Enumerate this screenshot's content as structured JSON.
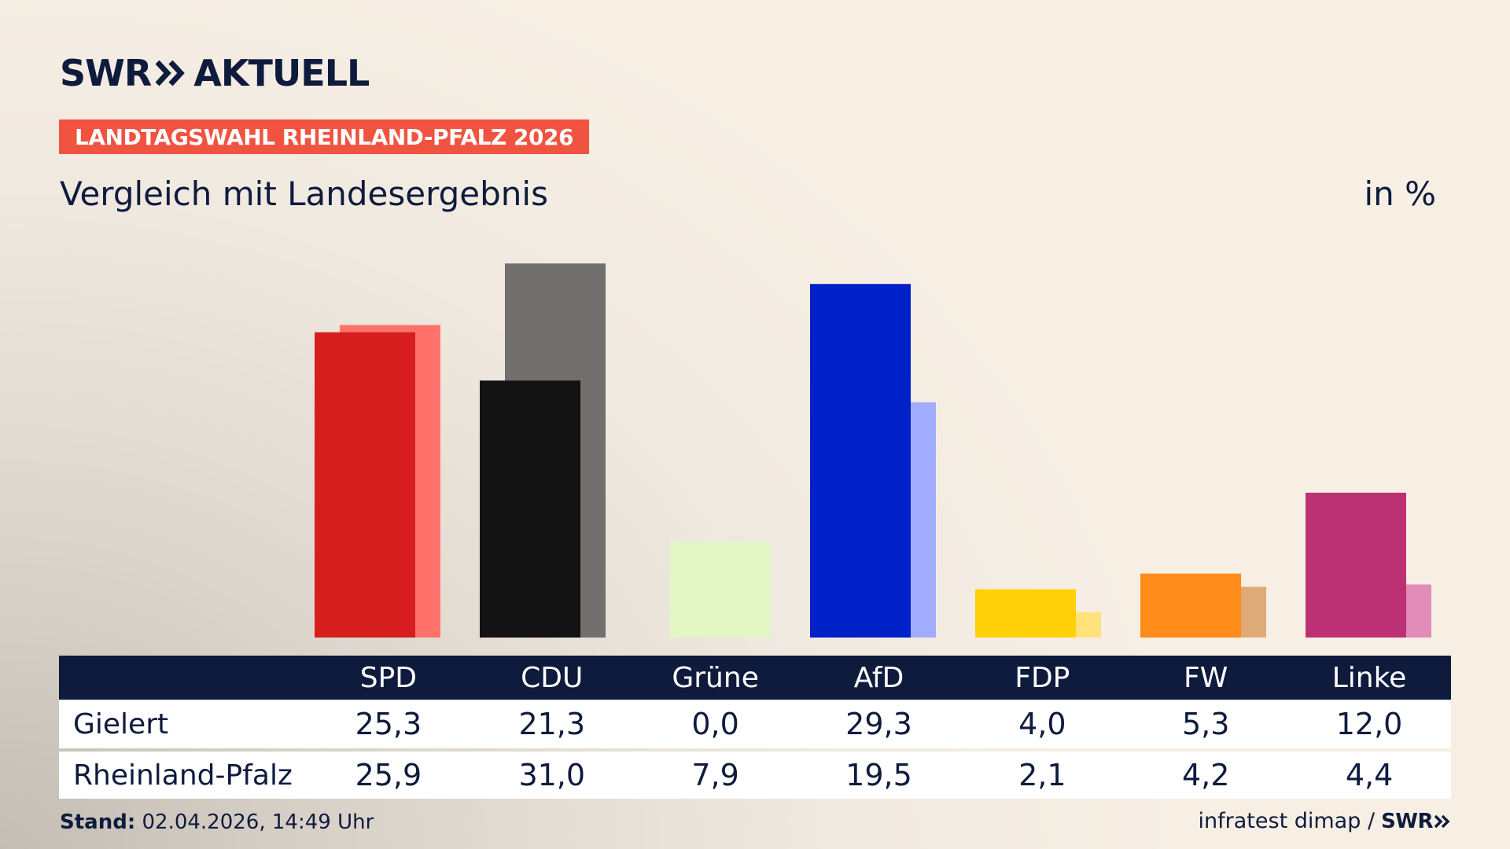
{
  "header": {
    "logo_left": "SWR",
    "logo_right": "AKTUELL",
    "badge": "LANDTAGSWAHL RHEINLAND-PFALZ 2026",
    "subtitle": "Vergleich mit Landesergebnis",
    "unit": "in %"
  },
  "colors": {
    "primary": [
      "#d71e1f",
      "#131313",
      "#d4f5ab",
      "#0021c7",
      "#ffd10a",
      "#ff8c1a",
      "#bc3173"
    ],
    "secondary": [
      "#ff726b",
      "#71706e",
      "#e2f7c4",
      "#a1acff",
      "#ffe27a",
      "#deaa78",
      "#e28cba"
    ]
  },
  "chart_data": {
    "type": "bar",
    "title": "Vergleich mit Landesergebnis",
    "ylabel": "in %",
    "categories": [
      "SPD",
      "CDU",
      "Grüne",
      "AfD",
      "FDP",
      "FW",
      "Linke"
    ],
    "series": [
      {
        "name": "Gielert",
        "values": [
          25.3,
          21.3,
          0.0,
          29.3,
          4.0,
          5.3,
          12.0
        ],
        "labels": [
          "25,3",
          "21,3",
          "0,0",
          "29,3",
          "4,0",
          "5,3",
          "12,0"
        ]
      },
      {
        "name": "Rheinland-Pfalz",
        "values": [
          25.9,
          31.0,
          7.9,
          19.5,
          2.1,
          4.2,
          4.4
        ],
        "labels": [
          "25,9",
          "31,0",
          "7,9",
          "19,5",
          "2,1",
          "4,2",
          "4,4"
        ]
      }
    ],
    "ylim": [
      0,
      31.0
    ]
  },
  "footer": {
    "stand_label": "Stand:",
    "stand_value": " 02.04.2026, 14:49 Uhr",
    "source": "infratest dimap /",
    "source_logo": "SWR"
  }
}
